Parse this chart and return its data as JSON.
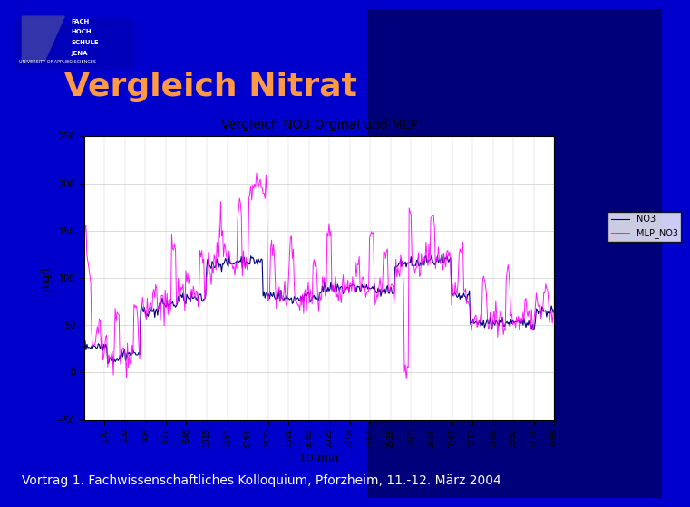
{
  "slide_bg": "#0000cc",
  "slide_bg_dark": "#000066",
  "title_text": "Vergleich Nitrat",
  "title_color": "#ff9944",
  "title_fontsize": 26,
  "footer_text": "Vortrag 1. Fachwissenschaftliches Kolloquium, Pforzheim, 11.-12. März 2004",
  "footer_color": "#ffffff",
  "footer_fontsize": 10,
  "chart_title": "Vergleich NO3 Orginal und MLP",
  "chart_xlabel": "10 min",
  "chart_ylabel": "mg/l",
  "chart_ylim": [
    -50,
    250
  ],
  "chart_yticks": [
    -50,
    0,
    50,
    100,
    150,
    200,
    250
  ],
  "x_tick_labels": [
    "170",
    "339",
    "508",
    "677",
    "846",
    "1015",
    "1184",
    "1353",
    "1522",
    "1691",
    "1860",
    "2025",
    "2198",
    "2367",
    "2536",
    "2705",
    "2874",
    "3043",
    "3212",
    "3381",
    "3550",
    "3719",
    "3888"
  ],
  "no3_color": "#000080",
  "mlp_color": "#FF00FF",
  "chart_bg": "#ffffff",
  "chart_inner_bg": "#f0f0f0",
  "legend_no3": "NO3",
  "legend_mlp": "MLP_NO3"
}
